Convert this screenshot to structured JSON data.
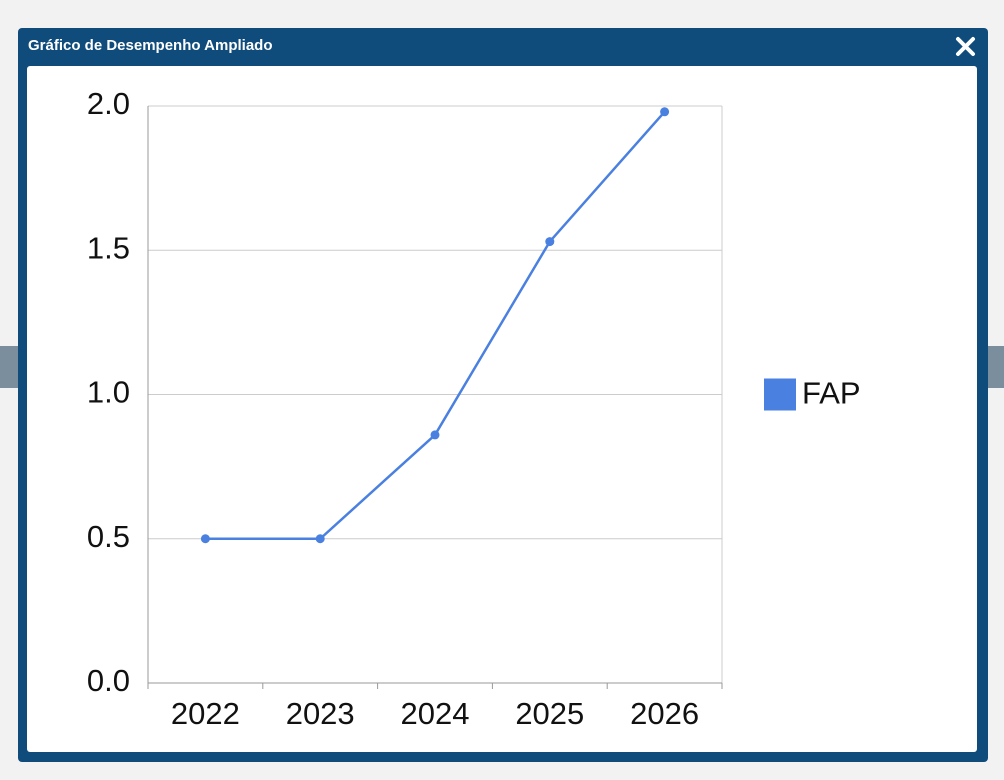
{
  "dialog": {
    "title": "Gráfico de Desempenho Ampliado"
  },
  "chart_data": {
    "type": "line",
    "categories": [
      "2022",
      "2023",
      "2024",
      "2025",
      "2026"
    ],
    "series": [
      {
        "name": "FAP",
        "color": "#4a80e0",
        "values": [
          0.5,
          0.5,
          0.86,
          1.53,
          1.98
        ]
      }
    ],
    "ylim": [
      0,
      2
    ],
    "yticks": [
      {
        "value": 0,
        "label": "0.0"
      },
      0.5,
      {
        "value": 1,
        "label": "1.0"
      },
      1.5,
      {
        "value": 2,
        "label": "2.0"
      }
    ],
    "grid": true,
    "legend": "right"
  }
}
